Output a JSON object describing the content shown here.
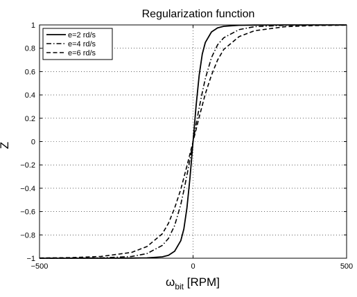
{
  "chart_data": {
    "type": "line",
    "title": "Regularization function",
    "xlabel_main": "ω",
    "xlabel_sub": "bit",
    "xlabel_unit": " [RPM]",
    "ylabel": "Z",
    "xlim": [
      -500,
      500
    ],
    "ylim": [
      -1,
      1
    ],
    "grid": true,
    "legend_position": "top-left",
    "x_ticks": [
      -500,
      0,
      500
    ],
    "x_tick_labels": [
      "−500",
      "0",
      "500"
    ],
    "y_ticks": [
      -1,
      -0.8,
      -0.6,
      -0.4,
      -0.2,
      0,
      0.2,
      0.4,
      0.6,
      0.8,
      1
    ],
    "y_tick_labels": [
      "−1",
      "−0.8",
      "−0.6",
      "−0.4",
      "−0.2",
      "0",
      "0.2",
      "0.4",
      "0.6",
      "0.8",
      "1"
    ],
    "series": [
      {
        "name": "e=2 rd/s",
        "dash": "solid",
        "x": [
          -500,
          -400,
          -300,
          -200,
          -150,
          -100,
          -80,
          -60,
          -40,
          -30,
          -20,
          -10,
          0,
          10,
          20,
          30,
          40,
          60,
          80,
          100,
          150,
          200,
          300,
          400,
          500
        ],
        "y": [
          -1.0,
          -1.0,
          -1.0,
          -0.999,
          -0.997,
          -0.988,
          -0.975,
          -0.94,
          -0.85,
          -0.75,
          -0.57,
          -0.31,
          0,
          0.31,
          0.57,
          0.75,
          0.85,
          0.94,
          0.975,
          0.988,
          0.997,
          0.999,
          1.0,
          1.0,
          1.0
        ]
      },
      {
        "name": "e=4 rd/s",
        "dash": "dashdot",
        "x": [
          -500,
          -400,
          -300,
          -200,
          -150,
          -100,
          -80,
          -60,
          -40,
          -30,
          -20,
          -10,
          0,
          10,
          20,
          30,
          40,
          60,
          80,
          100,
          150,
          200,
          300,
          400,
          500
        ],
        "y": [
          -1.0,
          -0.999,
          -0.997,
          -0.985,
          -0.96,
          -0.89,
          -0.83,
          -0.72,
          -0.54,
          -0.42,
          -0.29,
          -0.15,
          0,
          0.15,
          0.29,
          0.42,
          0.54,
          0.72,
          0.83,
          0.89,
          0.96,
          0.985,
          0.997,
          0.999,
          1.0
        ]
      },
      {
        "name": "e=6 rd/s",
        "dash": "dashed",
        "x": [
          -500,
          -400,
          -300,
          -200,
          -150,
          -100,
          -80,
          -60,
          -40,
          -30,
          -20,
          -10,
          0,
          10,
          20,
          30,
          40,
          60,
          80,
          100,
          150,
          200,
          300,
          400,
          500
        ],
        "y": [
          -0.998,
          -0.995,
          -0.985,
          -0.95,
          -0.9,
          -0.79,
          -0.7,
          -0.57,
          -0.41,
          -0.31,
          -0.21,
          -0.105,
          0,
          0.105,
          0.21,
          0.31,
          0.41,
          0.57,
          0.7,
          0.79,
          0.9,
          0.95,
          0.985,
          0.995,
          0.998
        ]
      }
    ]
  }
}
